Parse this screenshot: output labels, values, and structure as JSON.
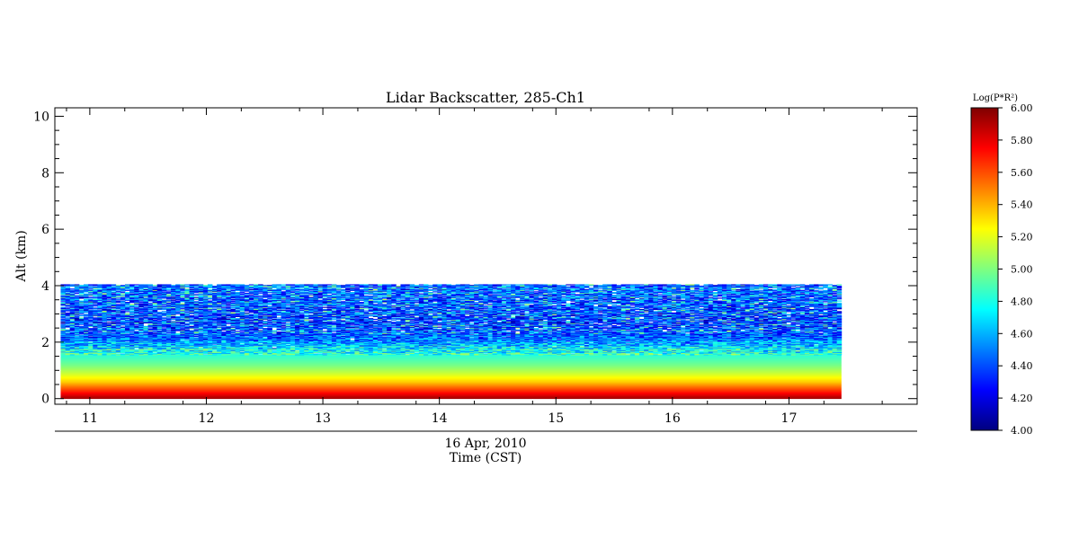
{
  "chart_data": {
    "type": "heatmap",
    "title": "Lidar Backscatter, 285-Ch1",
    "ylabel": "Alt (km)",
    "date_label": "16 Apr, 2010",
    "xlabel": "Time (CST)",
    "xlim": [
      10.7,
      18.1
    ],
    "ylim": [
      -0.2,
      10.3
    ],
    "x_ticks": [
      11,
      12,
      13,
      14,
      15,
      16,
      17
    ],
    "x_tick_labels": [
      "11",
      "12",
      "13",
      "14",
      "15",
      "16",
      "17"
    ],
    "y_ticks": [
      0,
      2,
      4,
      6,
      8,
      10
    ],
    "y_tick_labels": [
      "0",
      "2",
      "4",
      "6",
      "8",
      "10"
    ],
    "data_extent": {
      "time_start": 10.75,
      "time_end": 17.45,
      "alt_min": 0.0,
      "alt_max": 4.05
    },
    "profile": [
      {
        "alt": 0.0,
        "value": 5.95
      },
      {
        "alt": 0.3,
        "value": 5.65
      },
      {
        "alt": 0.6,
        "value": 5.35
      },
      {
        "alt": 0.9,
        "value": 5.15
      },
      {
        "alt": 1.2,
        "value": 4.98
      },
      {
        "alt": 1.5,
        "value": 4.85
      },
      {
        "alt": 1.8,
        "value": 4.7
      },
      {
        "alt": 2.1,
        "value": 4.5
      },
      {
        "alt": 2.6,
        "value": 4.35
      },
      {
        "alt": 3.2,
        "value": 4.4
      },
      {
        "alt": 4.05,
        "value": 4.45
      }
    ],
    "colorbar": {
      "label": "Log(P*R²)",
      "min": 4.0,
      "max": 6.0,
      "tick_values": [
        4.0,
        4.2,
        4.4,
        4.6,
        4.8,
        5.0,
        5.2,
        5.4,
        5.6,
        5.8,
        6.0
      ],
      "tick_labels": [
        "4.00",
        "4.20",
        "4.40",
        "4.60",
        "4.80",
        "5.00",
        "5.20",
        "5.40",
        "5.60",
        "5.80",
        "6.00"
      ],
      "colormap": [
        "#00007f",
        "#0000ff",
        "#007fff",
        "#00ffff",
        "#7fff7f",
        "#ffff00",
        "#ff7f00",
        "#ff0000",
        "#7f0000"
      ]
    }
  }
}
